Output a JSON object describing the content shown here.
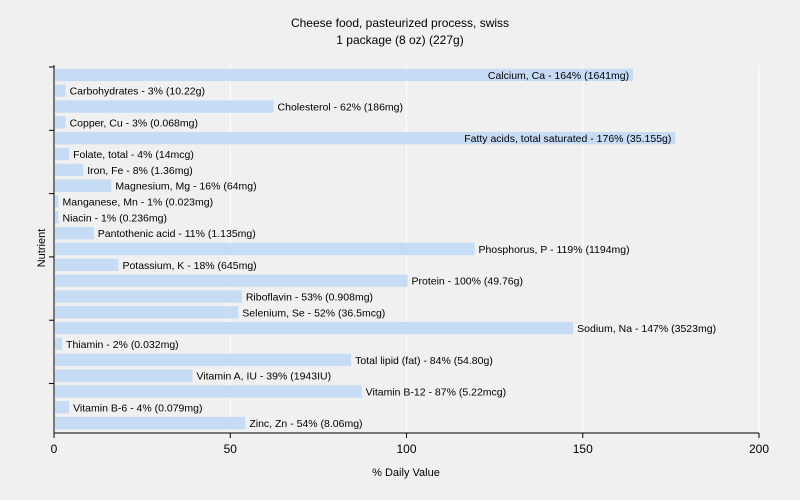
{
  "chart_data": {
    "type": "bar",
    "orientation": "horizontal",
    "title": "Cheese food, pasteurized process, swiss",
    "subtitle": "1 package (8 oz) (227g)",
    "xlabel": "% Daily Value",
    "ylabel": "Nutrient",
    "xlim": [
      0,
      200
    ],
    "xticks": [
      0,
      50,
      100,
      150,
      200
    ],
    "grid": true,
    "bar_color": "#c6dcf5",
    "grid_color": "#ffffff",
    "categories": [
      "Calcium, Ca",
      "Carbohydrates",
      "Cholesterol",
      "Copper, Cu",
      "Fatty acids, total saturated",
      "Folate, total",
      "Iron, Fe",
      "Magnesium, Mg",
      "Manganese, Mn",
      "Niacin",
      "Pantothenic acid",
      "Phosphorus, P",
      "Potassium, K",
      "Protein",
      "Riboflavin",
      "Selenium, Se",
      "Sodium, Na",
      "Thiamin",
      "Total lipid (fat)",
      "Vitamin A, IU",
      "Vitamin B-12",
      "Vitamin B-6",
      "Zinc, Zn"
    ],
    "values": [
      164,
      3,
      62,
      3,
      176,
      4,
      8,
      16,
      1,
      1,
      11,
      119,
      18,
      100,
      53,
      52,
      147,
      2,
      84,
      39,
      87,
      4,
      54
    ],
    "labels": [
      "Calcium, Ca - 164% (1641mg)",
      "Carbohydrates - 3% (10.22g)",
      "Cholesterol - 62% (186mg)",
      "Copper, Cu - 3% (0.068mg)",
      "Fatty acids, total saturated - 176% (35.155g)",
      "Folate, total - 4% (14mcg)",
      "Iron, Fe - 8% (1.36mg)",
      "Magnesium, Mg - 16% (64mg)",
      "Manganese, Mn - 1% (0.023mg)",
      "Niacin - 1% (0.236mg)",
      "Pantothenic acid - 11% (1.135mg)",
      "Phosphorus, P - 119% (1194mg)",
      "Potassium, K - 18% (645mg)",
      "Protein - 100% (49.76g)",
      "Riboflavin - 53% (0.908mg)",
      "Selenium, Se - 52% (36.5mcg)",
      "Sodium, Na - 147% (3523mg)",
      "Thiamin - 2% (0.032mg)",
      "Total lipid (fat) - 84% (54.80g)",
      "Vitamin A, IU - 39% (1943IU)",
      "Vitamin B-12 - 87% (5.22mcg)",
      "Vitamin B-6 - 4% (0.079mg)",
      "Zinc, Zn - 54% (8.06mg)"
    ]
  }
}
